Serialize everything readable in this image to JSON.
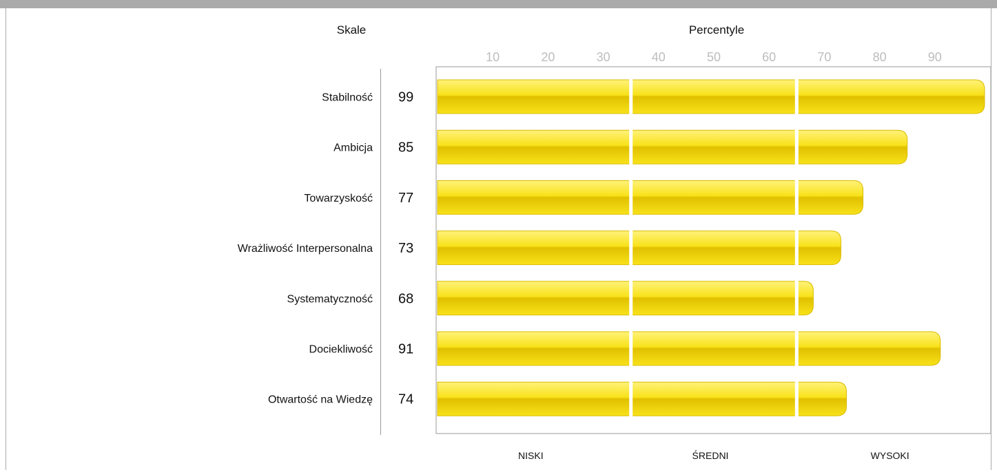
{
  "header": {
    "scales_label": "Skale",
    "percentiles_label": "Percentyle"
  },
  "colors": {
    "bar_light": "#fff27a",
    "bar_mid": "#f8e21a",
    "bar_dark": "#e0c000",
    "bar_edge": "#d9bb00",
    "separator": "#ffffff",
    "frame": "#aaaaaa",
    "tick": "#bdbdbd"
  },
  "chart_data": {
    "type": "bar",
    "orientation": "horizontal",
    "categories": [
      "Stabilność",
      "Ambicja",
      "Towarzyskość",
      "Wrażliwość Interpersonalna",
      "Systematyczność",
      "Dociekliwość",
      "Otwartość na Wiedzę"
    ],
    "values": [
      99,
      85,
      77,
      73,
      68,
      91,
      74
    ],
    "xlim": [
      0,
      100
    ],
    "xticks": [
      10,
      20,
      30,
      40,
      50,
      60,
      70,
      80,
      90
    ],
    "band_boundaries": [
      35,
      65
    ],
    "bands": [
      "NISKI",
      "ŚREDNI",
      "WYSOKI"
    ],
    "grid": false
  }
}
